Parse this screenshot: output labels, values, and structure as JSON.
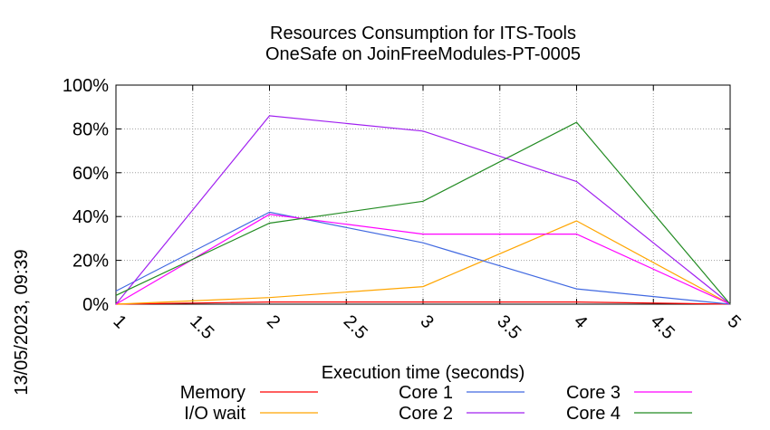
{
  "chart_data": {
    "type": "line",
    "title": "Resources Consumption for ITS-Tools",
    "subtitle": "OneSafe on JoinFreeModules-PT-0005",
    "xlabel": "Execution time (seconds)",
    "ylabel": "",
    "timestamp": "13/05/2023, 09:39",
    "xlim": [
      1,
      5
    ],
    "ylim": [
      0,
      100
    ],
    "x_ticks": [
      "1",
      "1.5",
      "2",
      "2.5",
      "3",
      "3.5",
      "4",
      "4.5",
      "5"
    ],
    "y_ticks": [
      "0%",
      "20%",
      "40%",
      "60%",
      "80%",
      "100%"
    ],
    "grid": true,
    "legend_position": "bottom",
    "x": [
      1,
      2,
      3,
      4,
      5
    ],
    "series": [
      {
        "name": "Memory",
        "color": "#ff0000",
        "values": [
          0,
          1,
          1,
          1,
          0
        ]
      },
      {
        "name": "I/O wait",
        "color": "#ffa500",
        "values": [
          0,
          3,
          8,
          38,
          0
        ]
      },
      {
        "name": "Core 1",
        "color": "#4169e1",
        "values": [
          6,
          42,
          28,
          7,
          0
        ]
      },
      {
        "name": "Core 2",
        "color": "#a020f0",
        "values": [
          0,
          86,
          79,
          56,
          0
        ]
      },
      {
        "name": "Core 3",
        "color": "#ff00ff",
        "values": [
          0,
          41,
          32,
          32,
          0
        ]
      },
      {
        "name": "Core 4",
        "color": "#228b22",
        "values": [
          4,
          37,
          47,
          83,
          0
        ]
      }
    ]
  }
}
